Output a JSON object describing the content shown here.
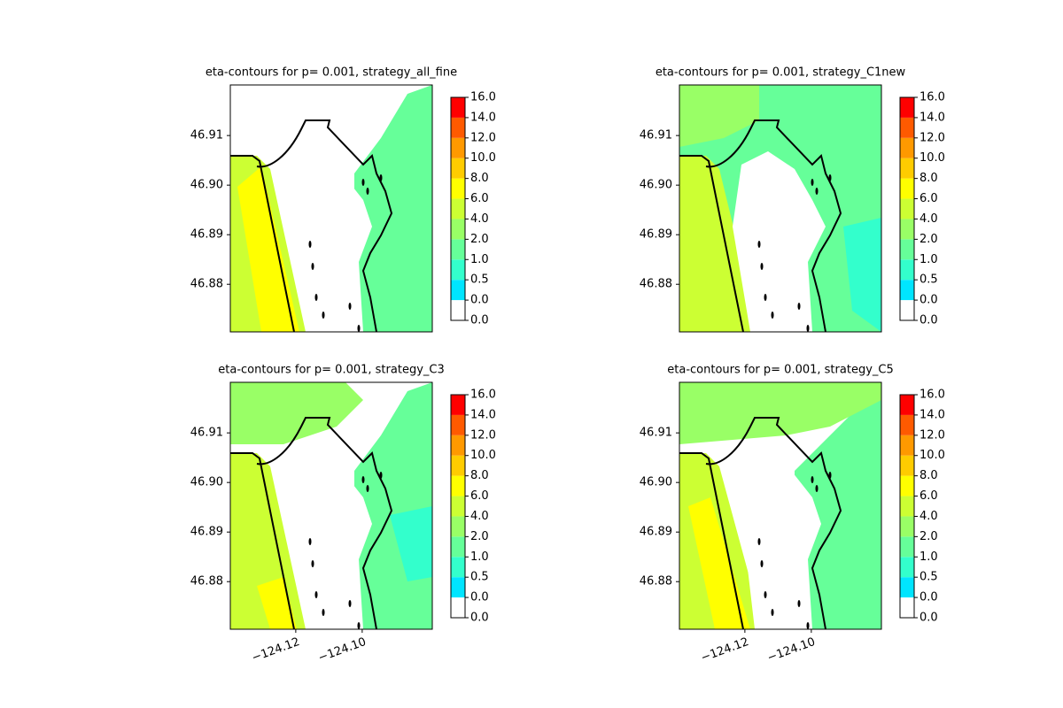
{
  "chart_data": [
    {
      "type": "contour",
      "title": "eta-contours for p= 0.001, strategy_all_fine",
      "xlim": [
        -124.1397,
        -124.0789
      ],
      "ylim": [
        46.8704,
        46.9202
      ],
      "yticks": [
        46.88,
        46.89,
        {
          "value": 46.9,
          "label": "46.90"
        },
        46.91
      ],
      "levels": [
        {
          "value": 0,
          "label": "0.0"
        },
        {
          "value": 0,
          "label": "0.0"
        },
        0.5,
        {
          "value": 1,
          "label": "1.0"
        },
        {
          "value": 2,
          "label": "2.0"
        },
        {
          "value": 4,
          "label": "4.0"
        },
        {
          "value": 6,
          "label": "6.0"
        },
        {
          "value": 8,
          "label": "8.0"
        },
        {
          "value": 10,
          "label": "10.0"
        },
        {
          "value": 12,
          "label": "12.0"
        },
        {
          "value": 14,
          "label": "14.0"
        },
        {
          "value": 16,
          "label": "16.0"
        }
      ],
      "colors": [
        "#ffffff",
        "#00e5ff",
        "#33ffcc",
        "#66ff99",
        "#99ff66",
        "#ccff33",
        "#ffff00",
        "#ffcc00",
        "#ff9900",
        "#ff5a00",
        "#ff0000"
      ]
    },
    {
      "type": "contour",
      "title": "eta-contours for p= 0.001, strategy_C1new",
      "xlim": [
        -124.1397,
        -124.0789
      ],
      "ylim": [
        46.8704,
        46.9202
      ],
      "yticks": [
        46.88,
        46.89,
        {
          "value": 46.9,
          "label": "46.90"
        },
        46.91
      ],
      "levels": [
        {
          "value": 0,
          "label": "0.0"
        },
        {
          "value": 0,
          "label": "0.0"
        },
        0.5,
        {
          "value": 1,
          "label": "1.0"
        },
        {
          "value": 2,
          "label": "2.0"
        },
        {
          "value": 4,
          "label": "4.0"
        },
        {
          "value": 6,
          "label": "6.0"
        },
        {
          "value": 8,
          "label": "8.0"
        },
        {
          "value": 10,
          "label": "10.0"
        },
        {
          "value": 12,
          "label": "12.0"
        },
        {
          "value": 14,
          "label": "14.0"
        },
        {
          "value": 16,
          "label": "16.0"
        }
      ],
      "colors": [
        "#ffffff",
        "#00e5ff",
        "#33ffcc",
        "#66ff99",
        "#99ff66",
        "#ccff33",
        "#ffff00",
        "#ffcc00",
        "#ff9900",
        "#ff5a00",
        "#ff0000"
      ]
    },
    {
      "type": "contour",
      "title": "eta-contours for p= 0.001, strategy_C3",
      "xlim": [
        -124.1397,
        -124.0789
      ],
      "ylim": [
        46.8704,
        46.9202
      ],
      "xticks": [
        {
          "value": -124.12,
          "label": "−124.12"
        },
        {
          "value": -124.1,
          "label": "−124.10"
        }
      ],
      "yticks": [
        46.88,
        46.89,
        {
          "value": 46.9,
          "label": "46.90"
        },
        46.91
      ],
      "levels": [
        {
          "value": 0,
          "label": "0.0"
        },
        {
          "value": 0,
          "label": "0.0"
        },
        0.5,
        {
          "value": 1,
          "label": "1.0"
        },
        {
          "value": 2,
          "label": "2.0"
        },
        {
          "value": 4,
          "label": "4.0"
        },
        {
          "value": 6,
          "label": "6.0"
        },
        {
          "value": 8,
          "label": "8.0"
        },
        {
          "value": 10,
          "label": "10.0"
        },
        {
          "value": 12,
          "label": "12.0"
        },
        {
          "value": 14,
          "label": "14.0"
        },
        {
          "value": 16,
          "label": "16.0"
        }
      ],
      "colors": [
        "#ffffff",
        "#00e5ff",
        "#33ffcc",
        "#66ff99",
        "#99ff66",
        "#ccff33",
        "#ffff00",
        "#ffcc00",
        "#ff9900",
        "#ff5a00",
        "#ff0000"
      ]
    },
    {
      "type": "contour",
      "title": "eta-contours for p= 0.001, strategy_C5",
      "xlim": [
        -124.1397,
        -124.0789
      ],
      "ylim": [
        46.8704,
        46.9202
      ],
      "xticks": [
        {
          "value": -124.12,
          "label": "−124.12"
        },
        {
          "value": -124.1,
          "label": "−124.10"
        }
      ],
      "yticks": [
        46.88,
        46.89,
        {
          "value": 46.9,
          "label": "46.90"
        },
        46.91
      ],
      "levels": [
        {
          "value": 0,
          "label": "0.0"
        },
        {
          "value": 0,
          "label": "0.0"
        },
        0.5,
        {
          "value": 1,
          "label": "1.0"
        },
        {
          "value": 2,
          "label": "2.0"
        },
        {
          "value": 4,
          "label": "4.0"
        },
        {
          "value": 6,
          "label": "6.0"
        },
        {
          "value": 8,
          "label": "8.0"
        },
        {
          "value": 10,
          "label": "10.0"
        },
        {
          "value": 12,
          "label": "12.0"
        },
        {
          "value": 14,
          "label": "14.0"
        },
        {
          "value": 16,
          "label": "16.0"
        }
      ],
      "colors": [
        "#ffffff",
        "#00e5ff",
        "#33ffcc",
        "#66ff99",
        "#99ff66",
        "#ccff33",
        "#ffff00",
        "#ffcc00",
        "#ff9900",
        "#ff5a00",
        "#ff0000"
      ]
    }
  ]
}
